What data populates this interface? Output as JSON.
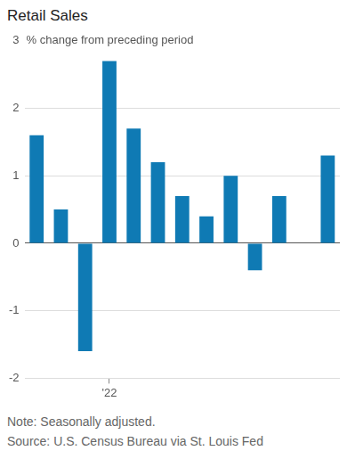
{
  "chart_data": {
    "type": "bar",
    "title": "Retail Sales",
    "subtitle": "% change from preceding period",
    "categories": [
      null,
      null,
      null,
      "'22",
      null,
      null,
      null,
      null,
      null,
      null,
      null,
      null,
      null
    ],
    "values": [
      1.6,
      0.5,
      -1.6,
      2.7,
      1.7,
      1.2,
      0.7,
      0.4,
      1.0,
      -0.4,
      0.7,
      0.0,
      1.3
    ],
    "color": "#0f7ab4",
    "ylim": [
      -2,
      3
    ],
    "yticks": [
      -2,
      -1,
      0,
      1,
      2,
      3
    ],
    "grid": true,
    "notes": [
      "Note: Seasonally adjusted.",
      "Source: U.S. Census Bureau via St. Louis Fed"
    ]
  }
}
